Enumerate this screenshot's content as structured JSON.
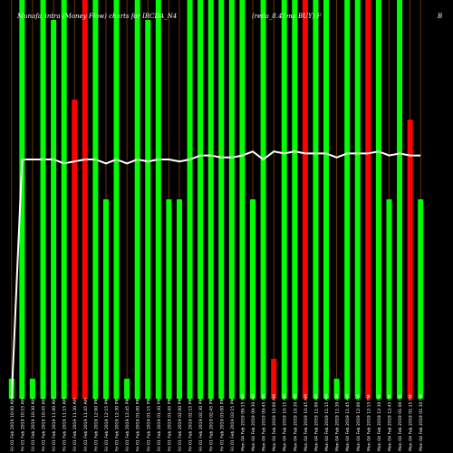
{
  "chart_data": {
    "type": "bar",
    "title_left": "Munafa_intra (Money Flow) charts for IRCDA_N4",
    "title_mid": "(reda_8.41ma BUY) F",
    "title_right": "B",
    "ylim": [
      0,
      100
    ],
    "grid": true,
    "colors": {
      "up": "#00ff00",
      "down": "#ff0000",
      "line": "#ffffff",
      "grid": "#8b4513",
      "background": "#000000"
    },
    "categories": [
      "Fri 01 Feb 2019 10:00 AM",
      "Fri 01 Feb 2019 10:15 AM",
      "Fri 01 Feb 2019 10:30 AM",
      "Fri 01 Feb 2019 10:45 AM",
      "Fri 01 Feb 2019 11:00 AM",
      "Fri 01 Feb 2019 11:15 AM",
      "Fri 01 Feb 2019 11:30 AM",
      "Fri 01 Feb 2019 11:45 AM",
      "Fri 01 Feb 2019 12:00 PM",
      "Fri 01 Feb 2019 12:15 PM",
      "Fri 01 Feb 2019 12:30 PM",
      "Fri 01 Feb 2019 12:45 PM",
      "Fri 01 Feb 2019 01:00 PM",
      "Fri 01 Feb 2019 01:15 PM",
      "Fri 01 Feb 2019 01:30 PM",
      "Fri 01 Feb 2019 01:45 PM",
      "Fri 01 Feb 2019 02:00 PM",
      "Fri 01 Feb 2019 02:15 PM",
      "Fri 01 Feb 2019 02:30 PM",
      "Fri 01 Feb 2019 02:45 PM",
      "Fri 01 Feb 2019 03:00 PM",
      "Fri 01 Feb 2019 03:15 PM",
      "Mon 04 Feb 2019 09:15 AM",
      "Mon 04 Feb 2019 09:30 AM",
      "Mon 04 Feb 2019 09:45 AM",
      "Mon 04 Feb 2019 10:00 AM",
      "Mon 04 Feb 2019 10:15 AM",
      "Mon 04 Feb 2019 10:30 AM",
      "Mon 04 Feb 2019 10:45 AM",
      "Mon 04 Feb 2019 11:00 AM",
      "Mon 04 Feb 2019 11:15 AM",
      "Mon 04 Feb 2019 11:30 AM",
      "Mon 04 Feb 2019 11:45 AM",
      "Mon 04 Feb 2019 12:00 PM",
      "Mon 04 Feb 2019 12:15 PM",
      "Mon 04 Feb 2019 12:30 PM",
      "Mon 04 Feb 2019 12:45 PM",
      "Mon 04 Feb 2019 01:00 PM",
      "Mon 04 Feb 2019 01:15 PM",
      "Mon 04 Feb 2019 01:30 PM"
    ],
    "series": [
      {
        "type": "bar",
        "values": [
          5,
          100,
          5,
          100,
          95,
          100,
          75,
          100,
          100,
          50,
          100,
          5,
          100,
          95,
          100,
          50,
          50,
          100,
          100,
          100,
          100,
          100,
          100,
          50,
          100,
          10,
          100,
          100,
          100,
          100,
          100,
          5,
          100,
          100,
          100,
          100,
          50,
          100,
          70,
          50
        ],
        "colors": [
          "up",
          "up",
          "up",
          "up",
          "up",
          "up",
          "down",
          "down",
          "up",
          "up",
          "up",
          "up",
          "up",
          "up",
          "up",
          "up",
          "up",
          "up",
          "up",
          "up",
          "up",
          "up",
          "up",
          "up",
          "up",
          "down",
          "up",
          "up",
          "down",
          "up",
          "up",
          "up",
          "up",
          "up",
          "down",
          "up",
          "up",
          "up",
          "down",
          "up"
        ]
      },
      {
        "type": "line",
        "values": [
          0,
          60,
          60,
          60,
          60,
          59,
          59.5,
          60,
          60,
          59,
          60,
          59,
          60,
          59.5,
          60,
          60,
          59.5,
          60,
          61,
          61,
          60.5,
          60.5,
          61,
          62,
          60,
          62,
          61.5,
          62,
          61.5,
          61.5,
          61.5,
          60.5,
          61.5,
          61.5,
          61.5,
          62,
          61,
          61.5,
          61,
          61
        ]
      }
    ]
  }
}
